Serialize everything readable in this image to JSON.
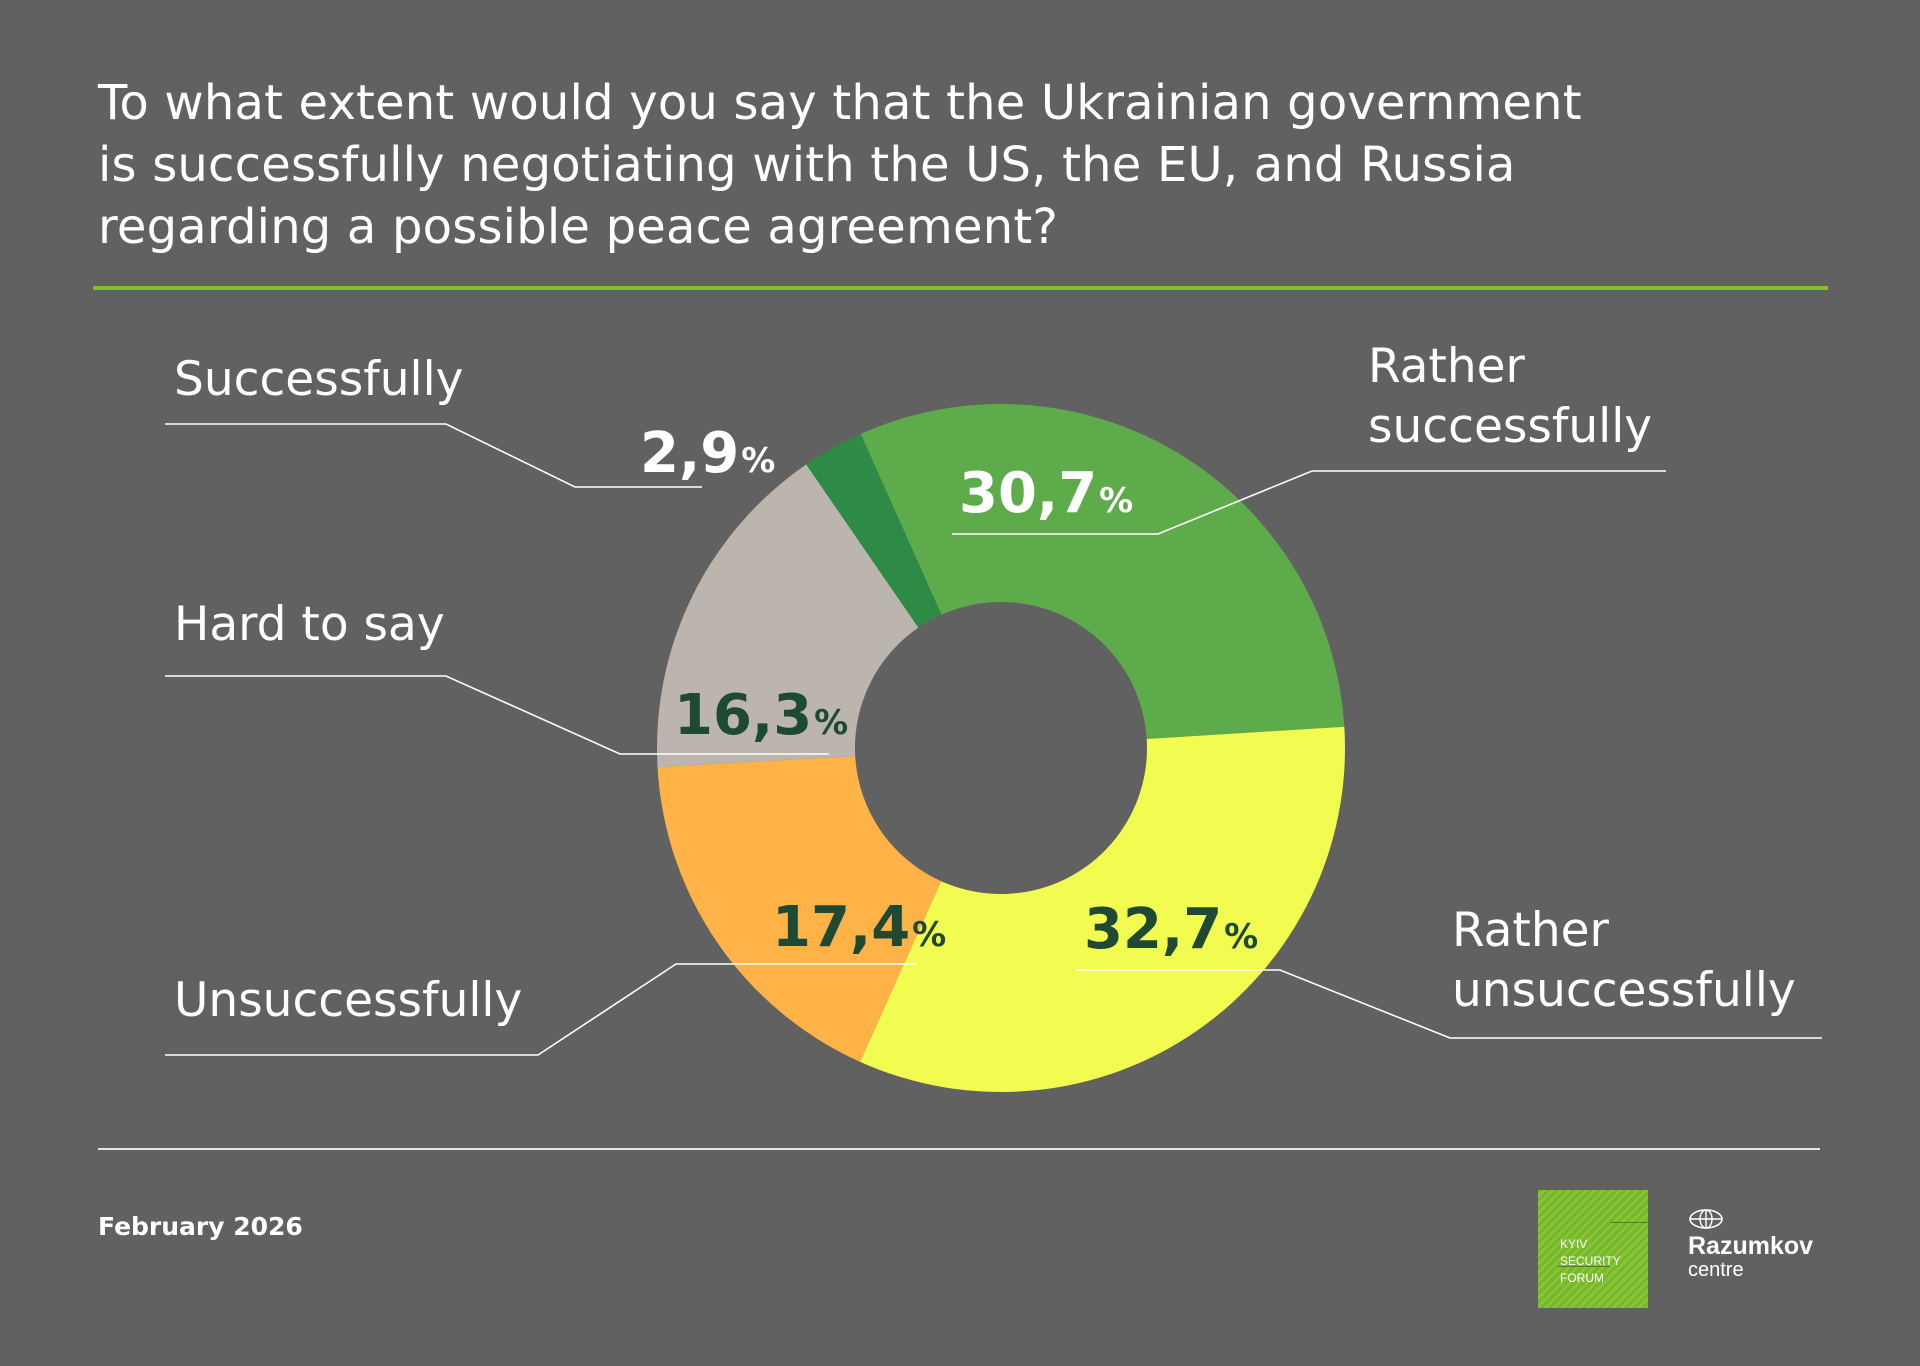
{
  "title": "To what extent would you say that the Ukrainian government\nis successfully negotiating with the US, the EU, and Russia\nregarding a possible peace agreement?",
  "footer": {
    "date": "February 2026"
  },
  "logos": {
    "ksf": {
      "text": "KYIV\nSECURITY\nFORUM",
      "color": "#7ebf2b"
    },
    "razumkov": {
      "name": "Razumkov",
      "sub": "centre"
    }
  },
  "chart_data": {
    "type": "pie",
    "style": "donut",
    "percent_sign": "%",
    "series": [
      {
        "label": "Successfully",
        "value": 2.9,
        "display": "2,9",
        "color": "#2e8b45",
        "value_color": "#ffffff"
      },
      {
        "label": "Rather successfully",
        "value": 30.7,
        "display": "30,7",
        "color": "#5dab4a",
        "value_color": "#ffffff"
      },
      {
        "label": "Rather unsuccessfully",
        "value": 32.7,
        "display": "32,7",
        "color": "#f2fb4f",
        "value_color": "#1e4a34"
      },
      {
        "label": "Unsuccessfully",
        "value": 17.4,
        "display": "17,4",
        "color": "#ffb347",
        "value_color": "#1e4a34"
      },
      {
        "label": "Hard to say",
        "value": 16.3,
        "display": "16,3",
        "color": "#bbb5ad",
        "value_color": "#1e4a34"
      }
    ]
  }
}
